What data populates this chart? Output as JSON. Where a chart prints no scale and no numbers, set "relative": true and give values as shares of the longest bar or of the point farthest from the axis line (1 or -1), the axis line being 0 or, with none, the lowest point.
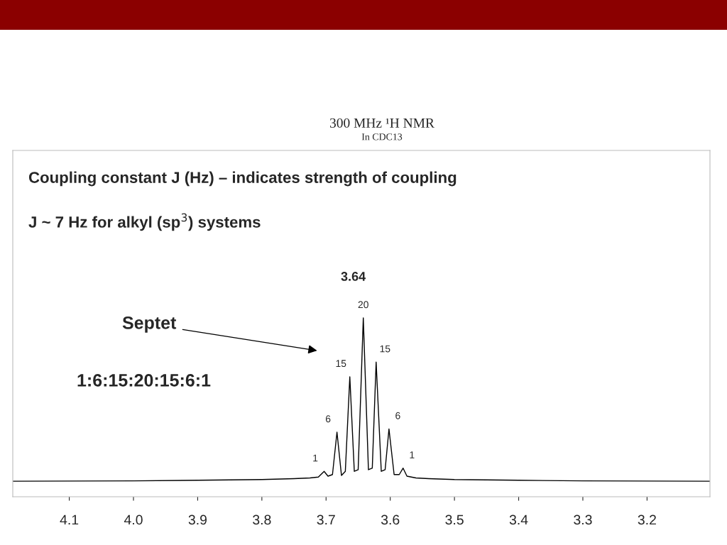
{
  "chart_data": {
    "type": "line",
    "title": "300 MHz ¹H NMR",
    "subtitle": "In CDC13",
    "relative": true,
    "xlim": [
      4.188,
      3.102
    ],
    "xticks": [
      4.1,
      {
        "value": 4.0,
        "label": "4.0"
      },
      3.9,
      3.8,
      3.7,
      3.6,
      3.5,
      3.4,
      3.3,
      3.2
    ],
    "series": [
      {
        "color": "#000000",
        "x": [
          4.188,
          4.0,
          3.9,
          3.8,
          3.75,
          3.725,
          3.712,
          3.703,
          3.697,
          3.69,
          3.683,
          3.676,
          3.67,
          3.663,
          3.656,
          3.65,
          3.642,
          3.634,
          3.628,
          3.622,
          3.614,
          3.608,
          3.602,
          3.594,
          3.586,
          3.58,
          3.574,
          3.56,
          3.54,
          3.5,
          3.4,
          3.3,
          3.102
        ],
        "values": [
          0.087,
          0.089,
          0.092,
          0.096,
          0.101,
          0.105,
          0.11,
          0.142,
          0.115,
          0.124,
          0.361,
          0.119,
          0.142,
          0.671,
          0.142,
          0.151,
          1.0,
          0.151,
          0.16,
          0.753,
          0.142,
          0.151,
          0.379,
          0.124,
          0.124,
          0.16,
          0.115,
          0.105,
          0.101,
          0.096,
          0.092,
          0.089,
          0.087
        ]
      }
    ],
    "marker": "none",
    "line_style": "solid",
    "grid": false,
    "legend": false,
    "annotations": [
      "Coupling constant J (Hz) – indicates strength of coupling",
      "J ~ 7 Hz for alkyl (sp$^{3}$) systems",
      "Septet",
      "1:6:15:20:15:6:1",
      "3.64",
      {
        "text": "1",
        "x": 3.703,
        "y": 0.142
      },
      {
        "text": "6",
        "x": 3.683,
        "y": 0.361
      },
      {
        "text": "15",
        "x": 3.663,
        "y": 0.671
      },
      {
        "text": "20",
        "x": 3.642,
        "y": 1.0
      },
      {
        "text": "15",
        "x": 3.622,
        "y": 0.753
      },
      {
        "text": "6",
        "x": 3.602,
        "y": 0.379
      },
      {
        "text": "1",
        "x": 3.58,
        "y": 0.16
      }
    ]
  }
}
